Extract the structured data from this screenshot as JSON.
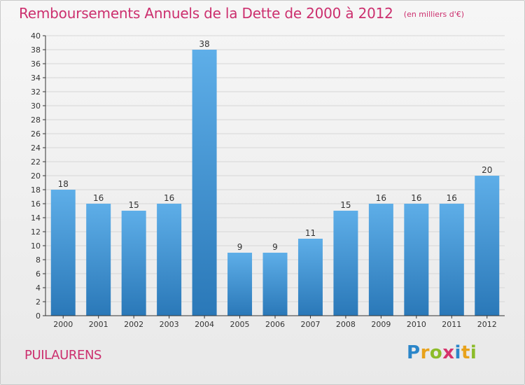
{
  "header": {
    "title": "Remboursements Annuels de la Dette de 2000 à 2012",
    "subtitle": "(en milliers d'€)"
  },
  "footer": {
    "commune": "PUILAURENS",
    "brand": "Proxiti"
  },
  "colors": {
    "title": "#cc2f6e",
    "bar_top": "#5eaee8",
    "bar_bottom": "#2a78b8",
    "axis": "#333333",
    "grid": "#d6d6d6"
  },
  "chart_data": {
    "type": "bar",
    "title": "Remboursements Annuels de la Dette de 2000 à 2012",
    "subtitle": "(en milliers d'€)",
    "categories": [
      "2000",
      "2001",
      "2002",
      "2003",
      "2004",
      "2005",
      "2006",
      "2007",
      "2008",
      "2009",
      "2010",
      "2011",
      "2012"
    ],
    "values": [
      18,
      16,
      15,
      16,
      38,
      9,
      9,
      11,
      15,
      16,
      16,
      16,
      20
    ],
    "data_labels": [
      "18",
      "16",
      "15",
      "16",
      "38",
      "9",
      "9",
      "11",
      "15",
      "16",
      "16",
      "16",
      "20"
    ],
    "ylim": [
      0,
      40
    ],
    "yticks": [
      0,
      2,
      4,
      6,
      8,
      10,
      12,
      14,
      16,
      18,
      20,
      22,
      24,
      26,
      28,
      30,
      32,
      34,
      36,
      38,
      40
    ],
    "xlabel": "",
    "ylabel": "",
    "grid": true
  }
}
